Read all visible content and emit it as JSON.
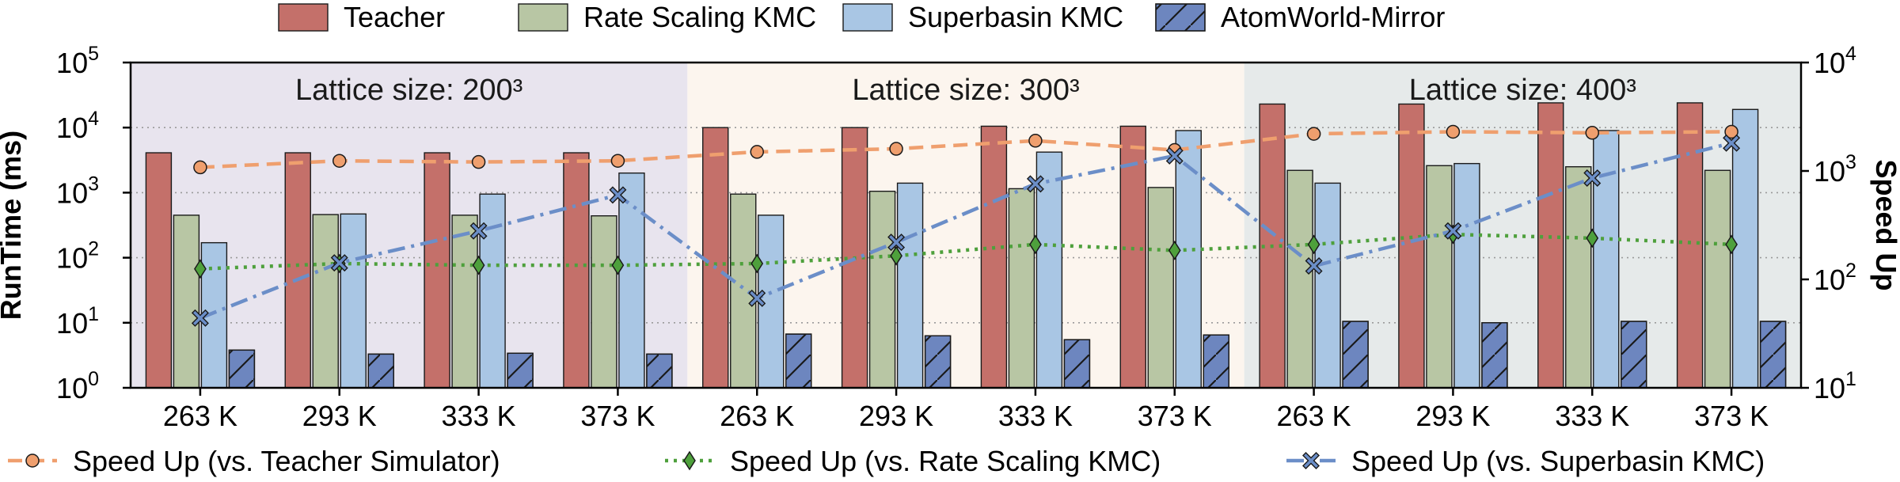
{
  "chart_data": {
    "type": "bar",
    "y_left": {
      "label": "RunTime (ms)",
      "scale": "log",
      "range": [
        1,
        100000
      ],
      "ticks": [
        {
          "base": "10",
          "exp": "0"
        },
        {
          "base": "10",
          "exp": "1"
        },
        {
          "base": "10",
          "exp": "2"
        },
        {
          "base": "10",
          "exp": "3"
        },
        {
          "base": "10",
          "exp": "4"
        },
        {
          "base": "10",
          "exp": "5"
        }
      ]
    },
    "y_right": {
      "label": "Speed Up",
      "scale": "log",
      "range": [
        10,
        10000
      ],
      "ticks": [
        {
          "base": "10",
          "exp": "1"
        },
        {
          "base": "10",
          "exp": "2"
        },
        {
          "base": "10",
          "exp": "3"
        },
        {
          "base": "10",
          "exp": "4"
        }
      ]
    },
    "grid": "horizontal dotted at left-axis decades",
    "groups": [
      {
        "label": "Lattice size: 200³",
        "bg": "#e8e4ee"
      },
      {
        "label": "Lattice size: 300³",
        "bg": "#fcf5ee"
      },
      {
        "label": "Lattice size: 400³",
        "bg": "#e6eaea"
      }
    ],
    "categories": [
      "263 K",
      "293 K",
      "333 K",
      "373 K",
      "263 K",
      "293 K",
      "333 K",
      "373 K",
      "263 K",
      "293 K",
      "333 K",
      "373 K"
    ],
    "bar_series": [
      {
        "name": "Teacher",
        "color": "#c4706a",
        "hatch": false,
        "values": [
          4100,
          4100,
          4100,
          4100,
          10000,
          10000,
          10500,
          10500,
          23000,
          23000,
          24000,
          24000
        ]
      },
      {
        "name": "Rate Scaling KMC",
        "color": "#b8c6a4",
        "hatch": false,
        "values": [
          450,
          460,
          450,
          440,
          950,
          1050,
          1150,
          1200,
          2200,
          2600,
          2500,
          2200
        ]
      },
      {
        "name": "Superbasin KMC",
        "color": "#a9c6e4",
        "hatch": false,
        "values": [
          170,
          470,
          950,
          2000,
          450,
          1400,
          4200,
          9000,
          1400,
          2800,
          9000,
          19000
        ]
      },
      {
        "name": "AtomWorld-Mirror",
        "color": "#6d86bf",
        "hatch": true,
        "values": [
          3.8,
          3.3,
          3.4,
          3.3,
          6.7,
          6.3,
          5.5,
          6.5,
          10.5,
          10,
          10.5,
          10.5
        ]
      }
    ],
    "line_series": [
      {
        "name": "Speed Up (vs. Teacher Simulator)",
        "color": "#ef9f6e",
        "marker": "circle",
        "style": "dashed",
        "values": [
          1080,
          1240,
          1210,
          1240,
          1500,
          1600,
          1900,
          1560,
          2200,
          2300,
          2250,
          2300
        ]
      },
      {
        "name": "Speed Up (vs. Rate Scaling KMC)",
        "color": "#4ea03c",
        "marker": "diamond",
        "style": "dotted",
        "values": [
          125,
          140,
          135,
          135,
          140,
          165,
          210,
          185,
          210,
          260,
          240,
          210
        ]
      },
      {
        "name": "Speed Up (vs. Superbasin KMC)",
        "color": "#6b8ec8",
        "marker": "x-square",
        "style": "dashdot",
        "values": [
          44,
          142,
          280,
          600,
          67,
          220,
          760,
          1380,
          133,
          280,
          860,
          1810
        ]
      }
    ]
  }
}
